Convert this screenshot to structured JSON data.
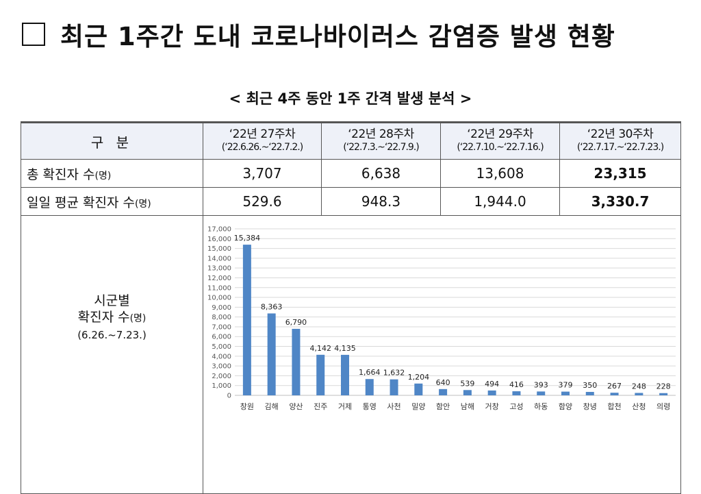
{
  "title": "최근 1주간 도내 코로나바이러스 감염증 발생 현황",
  "subtitle": "< 최근 4주 동안 1주 간격 발생 분석 >",
  "table": {
    "header_label": "구 분",
    "weeks": [
      {
        "label": "‘22년 27주차",
        "range": "(‘22.6.26.~‘22.7.2.)"
      },
      {
        "label": "‘22년 28주차",
        "range": "(‘22.7.3.~‘22.7.9.)"
      },
      {
        "label": "‘22년 29주차",
        "range": "(‘22.7.10.~‘22.7.16.)"
      },
      {
        "label": "‘22년 30주차",
        "range": "(‘22.7.17.~‘22.7.23.)"
      }
    ],
    "rows": [
      {
        "label": "총 확진자 수",
        "unit": "(명)",
        "values": [
          "3,707",
          "6,638",
          "13,608",
          "23,315"
        ]
      },
      {
        "label": "일일 평균 확진자 수",
        "unit": "(명)",
        "values": [
          "529.6",
          "948.3",
          "1,944.0",
          "3,330.7"
        ]
      }
    ],
    "chart_row_label": {
      "line1": "시군별",
      "line2": "확진자 수",
      "unit": "(명)",
      "range": "(6.26.~7.23.)"
    }
  },
  "chart_data": {
    "type": "bar",
    "categories": [
      "창원",
      "김해",
      "양산",
      "진주",
      "거제",
      "통영",
      "사천",
      "밀양",
      "함안",
      "남해",
      "거창",
      "고성",
      "하동",
      "함양",
      "창녕",
      "합천",
      "산청",
      "의령"
    ],
    "values": [
      15384,
      8363,
      6790,
      4142,
      4135,
      1664,
      1632,
      1204,
      640,
      539,
      494,
      416,
      393,
      379,
      350,
      267,
      248,
      228
    ],
    "data_labels": [
      "15,384",
      "8,363",
      "6,790",
      "4,142",
      "4,135",
      "1,664",
      "1,632",
      "1,204",
      "640",
      "539",
      "494",
      "416",
      "393",
      "379",
      "350",
      "267",
      "248",
      "228"
    ],
    "ylim": [
      0,
      17000
    ],
    "y_ticks": [
      "0",
      "1,000",
      "2,000",
      "3,000",
      "4,000",
      "5,000",
      "6,000",
      "7,000",
      "8,000",
      "9,000",
      "10,000",
      "11,000",
      "12,000",
      "13,000",
      "14,000",
      "15,000",
      "16,000",
      "17,000"
    ],
    "grid": true,
    "bar_color": "#4f86c6",
    "xlabel": "",
    "ylabel": ""
  }
}
